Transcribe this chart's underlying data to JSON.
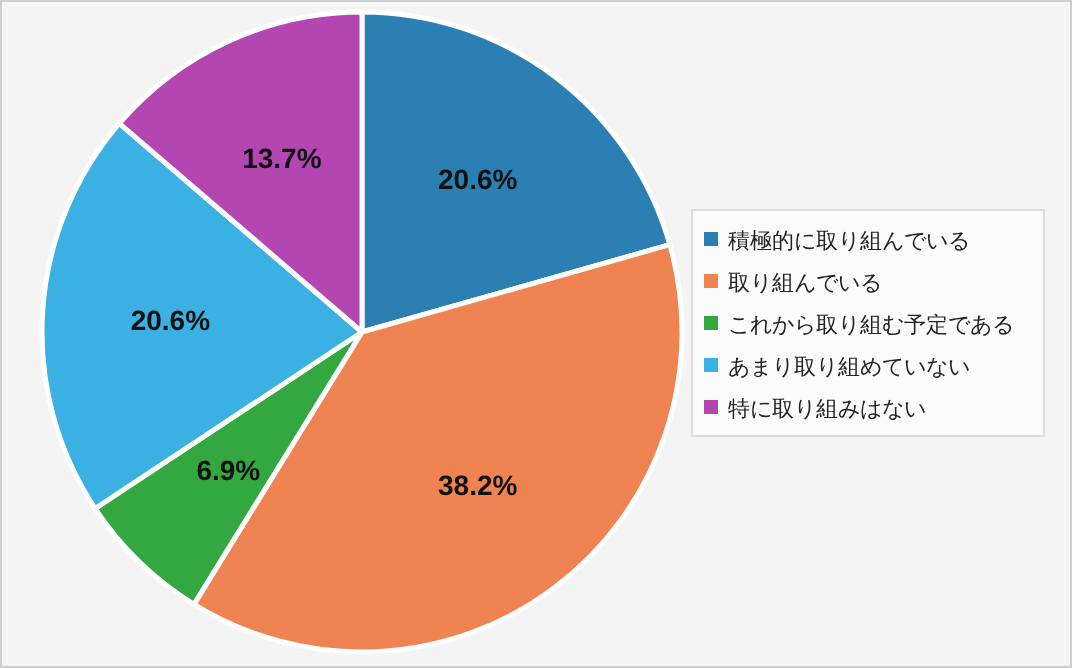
{
  "chart_data": {
    "type": "pie",
    "categories": [
      "積極的に取り組んでいる",
      "取り組んでいる",
      "これから取り組む予定である",
      "あまり取り組めていない",
      "特に取り組みはない"
    ],
    "values": [
      20.6,
      38.2,
      6.9,
      20.6,
      13.7
    ],
    "colors": [
      "#2b7fb3",
      "#ef8452",
      "#34a840",
      "#3bb0e2",
      "#b346b0"
    ],
    "value_labels": [
      "20.6%",
      "38.2%",
      "6.9%",
      "20.6%",
      "13.7%"
    ],
    "legend": "right"
  }
}
